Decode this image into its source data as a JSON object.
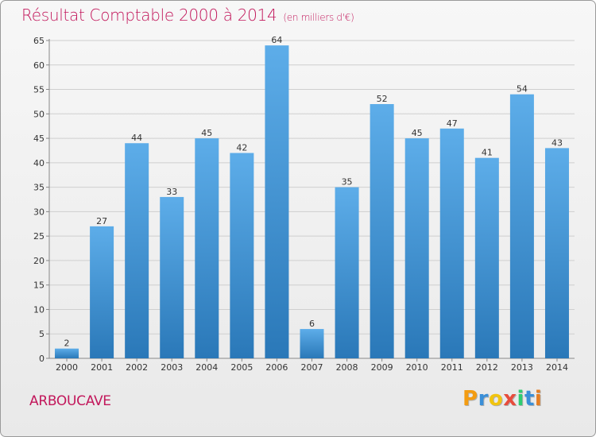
{
  "header": {
    "title": "Résultat Comptable 2000 à 2014",
    "subtitle": "(en milliers d'€)"
  },
  "commune": "ARBOUCAVE",
  "logo": {
    "letters": [
      "P",
      "r",
      "o",
      "x",
      "i",
      "t",
      "i"
    ],
    "colors": [
      "#f39c12",
      "#3a8fd8",
      "#f1c40f",
      "#e74c3c",
      "#2ecc71",
      "#3a8fd8",
      "#e67e22"
    ]
  },
  "colors": {
    "title": "#c2175b",
    "bar_light": "#5dade9",
    "bar_dark": "#2a78b8",
    "grid": "#cfcfcf"
  },
  "chart_data": {
    "type": "bar",
    "title": "Résultat Comptable 2000 à 2014",
    "subtitle": "(en milliers d'€)",
    "xlabel": "",
    "ylabel": "",
    "categories": [
      "2000",
      "2001",
      "2002",
      "2003",
      "2004",
      "2005",
      "2006",
      "2007",
      "2008",
      "2009",
      "2010",
      "2011",
      "2012",
      "2013",
      "2014"
    ],
    "values": [
      2,
      27,
      44,
      33,
      45,
      42,
      64,
      6,
      35,
      52,
      45,
      47,
      41,
      54,
      43
    ],
    "ylim": [
      0,
      65
    ],
    "yticks": [
      0,
      5,
      10,
      15,
      20,
      25,
      30,
      35,
      40,
      45,
      50,
      55,
      60,
      65
    ],
    "grid": true,
    "legend": "none"
  }
}
